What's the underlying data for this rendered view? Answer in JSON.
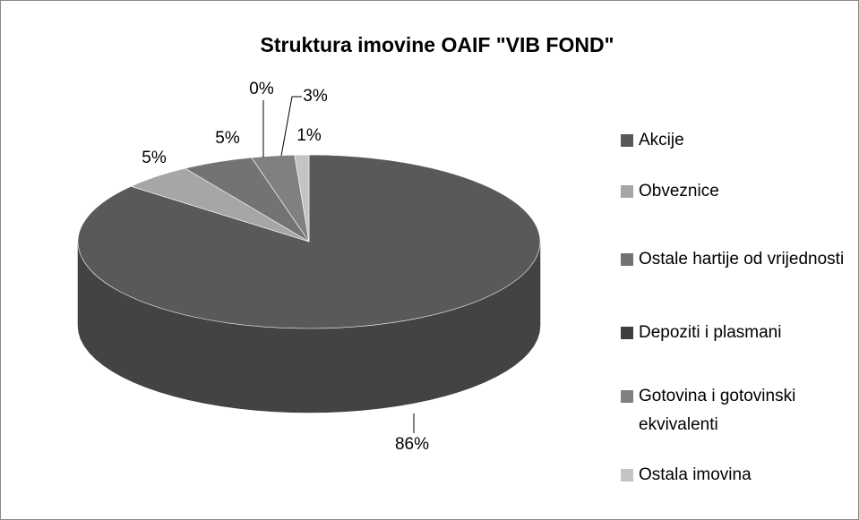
{
  "chart_data": {
    "type": "pie",
    "title": "Struktura imovine OAIF \"VIB FOND\"",
    "categories": [
      "Akcije",
      "Obveznice",
      "Ostale hartije od vrijednosti",
      "Depoziti i plasmani",
      "Gotovina i gotovinski ekvivalenti",
      "Ostala imovina"
    ],
    "values": [
      86,
      5,
      5,
      0,
      3,
      1
    ],
    "value_labels": [
      "86%",
      "5%",
      "5%",
      "0%",
      "3%",
      "1%"
    ],
    "colors": [
      "#595959",
      "#a6a6a6",
      "#737373",
      "#3f3f3f",
      "#808080",
      "#c4c4c4"
    ],
    "legend": "right"
  }
}
